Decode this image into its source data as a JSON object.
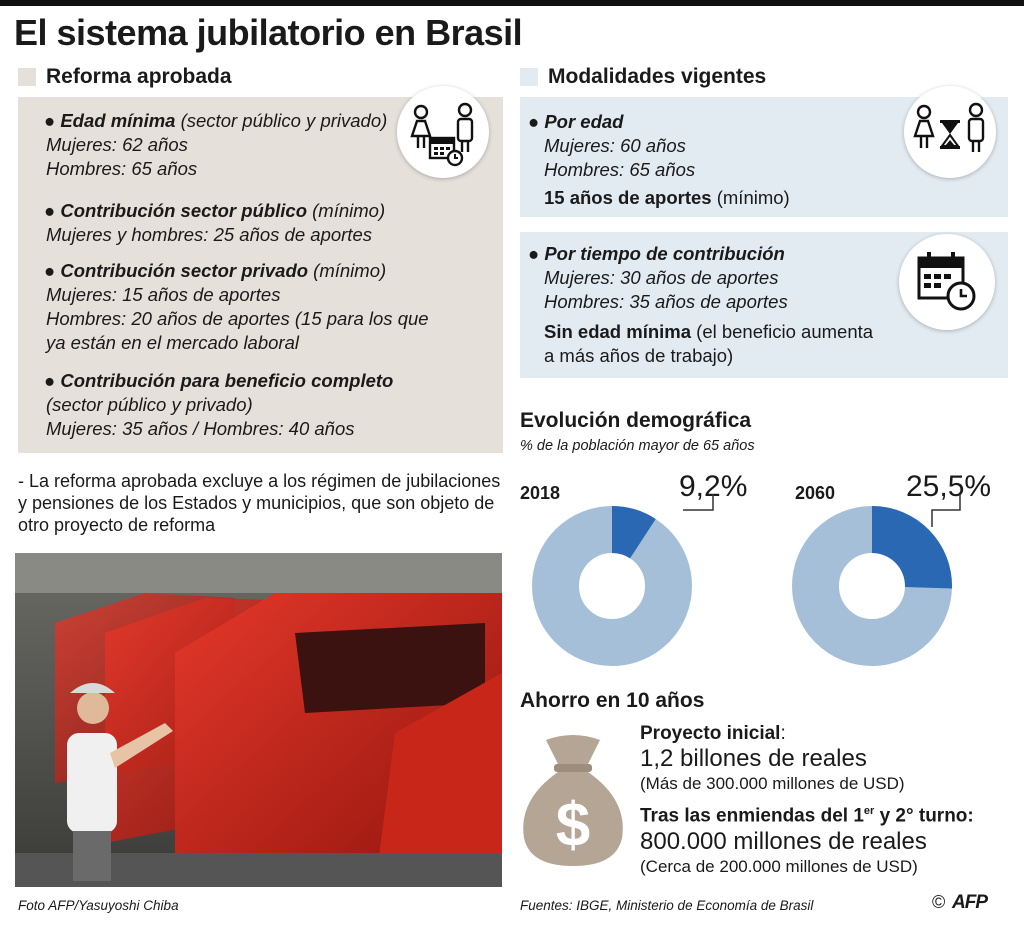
{
  "title": "El sistema jubilatorio en Brasil",
  "left_section": {
    "heading": "Reforma aprobada",
    "color": "#e6e0da",
    "items": [
      {
        "bold": "Edad mínima",
        "rest": " (sector público y privado)",
        "lines": [
          "Mujeres: 62 años",
          "Hombres: 65 años"
        ]
      },
      {
        "bold": "Contribución sector público",
        "rest": " (mínimo)",
        "lines": [
          "Mujeres y hombres: 25 años de aportes"
        ]
      },
      {
        "bold": "Contribución sector privado",
        "rest": " (mínimo)",
        "lines": [
          "Mujeres: 15 años de aportes",
          "Hombres: 20 años de aportes (15 para los que",
          "ya están en el mercado laboral"
        ]
      },
      {
        "bold": "Contribución para beneficio completo",
        "rest": "",
        "lines": [
          "(sector público y privado)",
          "Mujeres: 35 años / Hombres: 40 años"
        ]
      }
    ],
    "note": "- La reforma aprobada excluye a los régimen de jubilaciones y pensiones  de los Estados y municipios, que son objeto de otro proyecto de reforma"
  },
  "right_section": {
    "heading": "Modalidades vigentes",
    "color": "#e2ebf2",
    "por_edad": {
      "title": "Por edad",
      "lines": [
        "Mujeres: 60 años",
        "Hombres: 65 años"
      ],
      "extra_bold": "15 años de aportes",
      "extra_rest": " (mínimo)"
    },
    "por_tiempo": {
      "title": "Por tiempo de contribución",
      "lines": [
        "Mujeres: 30 años de aportes",
        "Hombres: 35 años de aportes"
      ],
      "extra_bold": "Sin edad mínima",
      "extra_rest": " (el beneficio aumenta",
      "extra_line2": "a más años de trabajo)"
    }
  },
  "demografia": {
    "title": "Evolución demográfica",
    "subtitle": "% de la población mayor de 65 años",
    "charts": [
      {
        "year": "2018",
        "label": "9,2%",
        "value": 9.2
      },
      {
        "year": "2060",
        "label": "25,5%",
        "value": 25.5
      }
    ],
    "colors": {
      "highlight": "#2b68b3",
      "base": "#a6bfd9"
    }
  },
  "ahorro": {
    "title": "Ahorro en 10 años",
    "inicial_label": "Proyecto inicial",
    "inicial_colon": ":",
    "inicial_value": "1,2 billones de reales",
    "inicial_note": "(Más de 300.000 millones de USD)",
    "tras_label_a": "Tras las enmiendas del 1",
    "tras_sup": "er",
    "tras_label_b": " y 2° turno:",
    "tras_value": "800.000 millones de reales",
    "tras_note": "(Cerca de 200.000 millones de USD)",
    "bag_color": "#b5a594"
  },
  "footer": {
    "photo_credit": "Foto AFP/Yasuyoshi Chiba",
    "sources": "Fuentes: IBGE, Ministerio de Economía de Brasil",
    "copyright": "©",
    "logo": "AFP"
  }
}
